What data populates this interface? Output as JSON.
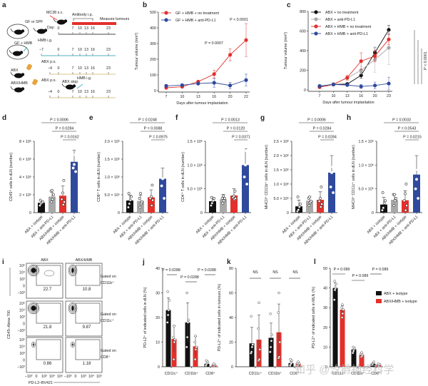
{
  "panel_letters": [
    "a",
    "b",
    "c",
    "d",
    "e",
    "f",
    "g",
    "h",
    "i",
    "j",
    "k",
    "l"
  ],
  "colors": {
    "black": "#111111",
    "gray": "#a8a8a8",
    "red": "#e3302b",
    "blue": "#2f4a9c",
    "teal": "#4fb3c2",
    "orange": "#e8a33a",
    "beige": "#d9c48a"
  },
  "schematic": {
    "mc38": "MC38 s.c.",
    "antibody": "Antibody i.p.",
    "measure": "Measure tumours",
    "gf_spf": "GF or SPF",
    "day": "Day:",
    "gf_hmb": "GF + HMB",
    "hmb_ig": "HMB i.g.",
    "abx": "ABX",
    "abx_po": "ABX p.o.",
    "abx_hmb": "ABX/HMB",
    "abx_po_2": "ABX p.o.",
    "abx_stop": "ABX stop",
    "hmb_ig_2": "HMB i.g.",
    "row1_days": [
      "0",
      "7",
      "10",
      "13",
      "16",
      "23"
    ],
    "row2_days": [
      "−7",
      "0",
      "7",
      "10",
      "13",
      "16",
      "23"
    ],
    "row3_days": [
      "−4",
      "0",
      "7",
      "10",
      "13",
      "16",
      "23"
    ],
    "row4_days": [
      "−4",
      "0",
      "7",
      "10",
      "13",
      "16",
      "23"
    ]
  },
  "chart_data": [
    {
      "panel": "b",
      "type": "line",
      "x": [
        7,
        10,
        13,
        16,
        20,
        22
      ],
      "xlabel": "Days after tumour implantation",
      "ylabel": "Tumour volume (mm³)",
      "ylim": [
        0,
        500
      ],
      "yticks": [
        0,
        100,
        200,
        300,
        400,
        500
      ],
      "series": [
        {
          "name": "GF + HMB + no treatment",
          "color": "#e3302b",
          "values": [
            18,
            25,
            57,
            105,
            228,
            322
          ],
          "err": [
            8,
            8,
            8,
            25,
            38,
            105
          ]
        },
        {
          "name": "GF + HMB + anti-PD-L1",
          "color": "#2f4a9c",
          "values": [
            30,
            35,
            45,
            50,
            33,
            67
          ],
          "err": [
            8,
            5,
            8,
            28,
            20,
            38
          ]
        }
      ],
      "annotations": [
        "P = 0.0007",
        "P < 0.0001"
      ]
    },
    {
      "panel": "c",
      "type": "line",
      "x": [
        7,
        10,
        13,
        16,
        20,
        23
      ],
      "xlabel": "Days after tumour implantation",
      "ylabel": "Tumour volume (mm³)",
      "ylim": [
        0,
        800
      ],
      "yticks": [
        0,
        200,
        400,
        600,
        800
      ],
      "series": [
        {
          "name": "ABX + no treatment",
          "color": "#111111",
          "values": [
            30,
            55,
            60,
            148,
            380,
            612
          ],
          "err": [
            10,
            10,
            10,
            30,
            50,
            45
          ]
        },
        {
          "name": "ABX + anti-PD-L1",
          "color": "#a8a8a8",
          "values": [
            35,
            60,
            120,
            200,
            310,
            430
          ],
          "err": [
            10,
            10,
            20,
            40,
            130,
            170
          ]
        },
        {
          "name": "ABX + HMB + no treatment",
          "color": "#e3302b",
          "values": [
            28,
            55,
            125,
            293,
            345,
            515
          ],
          "err": [
            8,
            10,
            25,
            85,
            60,
            55
          ]
        },
        {
          "name": "ABX + HMB + anti-PD-L1",
          "color": "#2f4a9c",
          "values": [
            40,
            55,
            50,
            35,
            45,
            65
          ],
          "err": [
            10,
            10,
            10,
            20,
            35,
            65
          ]
        }
      ],
      "annotations": [
        "P < 0.0001"
      ]
    },
    {
      "panel": "d",
      "type": "bar",
      "categories": [
        "ABX + isotype",
        "ABX + anti-PD-L1",
        "ABX/HMB + isotype",
        "ABX/HMB + anti-PD-L1"
      ],
      "colors": [
        "#111111",
        "#a8a8a8",
        "#e3302b",
        "#2f4a9c"
      ],
      "ylabel": "CD45⁺ cells in dLN (number)",
      "ylim": [
        0,
        8000000.0
      ],
      "yticks": [
        0,
        2000000.0,
        4000000.0,
        6000000.0,
        8000000.0
      ],
      "ytick_labels": [
        "0",
        "2 × 10⁶",
        "4 × 10⁶",
        "6 × 10⁶",
        "8 × 10⁶"
      ],
      "values": [
        1100000.0,
        1800000.0,
        1900000.0,
        5700000.0
      ],
      "sd": [
        200000.0,
        500000.0,
        1100000.0,
        1300000.0
      ],
      "points": [
        [
          800000.0,
          1000000.0,
          1100000.0,
          1200000.0,
          1400000.0
        ],
        [
          1200000.0,
          1500000.0,
          2000000.0,
          2400000.0,
          2500000.0
        ],
        [
          900000.0,
          1200000.0,
          1500000.0,
          2200000.0,
          3600000.0
        ],
        [
          4600000.0,
          5000000.0,
          5400000.0,
          6500000.0,
          7500000.0
        ]
      ],
      "comparisons": [
        {
          "groups": [
            0,
            3
          ],
          "label": "P = 0.0006"
        },
        {
          "groups": [
            1,
            3
          ],
          "label": "P = 0.0284"
        },
        {
          "groups": [
            2,
            3
          ],
          "label": "P = 0.0162"
        }
      ]
    },
    {
      "panel": "e",
      "type": "bar",
      "categories": [
        "ABX + isotype",
        "ABX + anti-PD-L1",
        "ABX/HMB + isotype",
        "ABX/HMB + anti-PD-L1"
      ],
      "colors": [
        "#111111",
        "#a8a8a8",
        "#e3302b",
        "#2f4a9c"
      ],
      "ylabel": "CD8⁺ T cells in dLN (number)",
      "ylim": [
        0,
        2000000.0
      ],
      "yticks": [
        0,
        500000.0,
        1000000.0,
        1500000.0,
        2000000.0
      ],
      "ytick_labels": [
        "0",
        "5.0 × 10⁵",
        "1.0 × 10⁶",
        "1.5 × 10⁶",
        "2.0 × 10⁶"
      ],
      "values": [
        340000.0,
        330000.0,
        430000.0,
        950000.0
      ],
      "sd": [
        150000.0,
        160000.0,
        210000.0,
        300000.0
      ],
      "points": [
        [
          150000.0,
          250000.0,
          350000.0,
          450000.0,
          540000.0
        ],
        [
          150000.0,
          250000.0,
          300000.0,
          400000.0,
          540000.0
        ],
        [
          200000.0,
          350000.0,
          400000.0,
          450000.0,
          770000.0
        ],
        [
          400000.0,
          750000.0,
          950000.0,
          1300000.0,
          1550000.0
        ]
      ],
      "comparisons": [
        {
          "groups": [
            0,
            3
          ],
          "label": "P = 0.0248"
        },
        {
          "groups": [
            1,
            3
          ],
          "label": "P = 0.0088"
        },
        {
          "groups": [
            2,
            3
          ],
          "label": "P = 0.0975"
        }
      ]
    },
    {
      "panel": "f",
      "type": "bar",
      "categories": [
        "ABX + isotype",
        "ABX + anti-PD-L1",
        "ABX/HMB + isotype",
        "ABX/HMB + anti-PD-L1"
      ],
      "colors": [
        "#111111",
        "#a8a8a8",
        "#e3302b",
        "#2f4a9c"
      ],
      "ylabel": "CD4⁺ T cells in dLN (number)",
      "ylim": [
        0,
        1500000.0
      ],
      "yticks": [
        0,
        500000.0,
        1000000.0,
        1500000.0
      ],
      "ytick_labels": [
        "0",
        "5.0 × 10⁵",
        "1.0 × 10⁶",
        "1.5 × 10⁶"
      ],
      "values": [
        240000.0,
        280000.0,
        360000.0,
        1000000.0
      ],
      "sd": [
        80000.0,
        100000.0,
        140000.0,
        340000.0
      ],
      "points": [
        [
          150000.0,
          200000.0,
          250000.0,
          300000.0,
          320000.0
        ],
        [
          200000.0,
          250000.0,
          300000.0,
          300000.0,
          350000.0
        ],
        [
          280000.0,
          300000.0,
          320000.0,
          350000.0,
          450000.0
        ],
        [
          600000.0,
          750000.0,
          1000000.0,
          1300000.0,
          1350000.0
        ]
      ],
      "comparisons": [
        {
          "groups": [
            0,
            3
          ],
          "label": "P = 0.0013"
        },
        {
          "groups": [
            1,
            3
          ],
          "label": "P = 0.0120"
        },
        {
          "groups": [
            2,
            3
          ],
          "label": "P = 0.0371"
        }
      ]
    },
    {
      "panel": "g",
      "type": "bar",
      "categories": [
        "ABX + isotype",
        "ABX + anti-PD-L1",
        "ABX/HMB + isotype",
        "ABX/HMB + anti-PD-L1"
      ],
      "colors": [
        "#111111",
        "#a8a8a8",
        "#e3302b",
        "#2f4a9c"
      ],
      "ylabel": "MHCII⁺ CD11b⁺ cells in dLN (number)",
      "ylim": [
        0,
        2500000.0
      ],
      "yticks": [
        0,
        500000.0,
        1000000.0,
        1500000.0,
        2000000.0,
        2500000.0
      ],
      "ytick_labels": [
        "0",
        "5.0 × 10⁵",
        "1.0 × 10⁶",
        "1.5 × 10⁶",
        "2.0 × 10⁶",
        "2.5 × 10⁶"
      ],
      "values": [
        220000.0,
        420000.0,
        450000.0,
        1400000.0
      ],
      "sd": [
        220000.0,
        130000.0,
        280000.0,
        600000.0
      ],
      "points": [
        [
          50000.0,
          100000.0,
          200000.0,
          300000.0,
          550000.0
        ],
        [
          250000.0,
          350000.0,
          400000.0,
          500000.0,
          550000.0
        ],
        [
          200000.0,
          300000.0,
          400000.0,
          500000.0,
          900000.0
        ],
        [
          700000.0,
          900000.0,
          1400000.0,
          1600000.0,
          2300000.0
        ]
      ],
      "comparisons": [
        {
          "groups": [
            0,
            3
          ],
          "label": "P = 0.0006"
        },
        {
          "groups": [
            1,
            3
          ],
          "label": "P = 0.0284"
        },
        {
          "groups": [
            2,
            3
          ],
          "label": "P = 0.0284"
        }
      ]
    },
    {
      "panel": "h",
      "type": "bar",
      "categories": [
        "ABX + isotype",
        "ABX + anti-PD-L1",
        "ABX/HMB + isotype",
        "ABX/HMB + anti-PD-L1"
      ],
      "colors": [
        "#111111",
        "#a8a8a8",
        "#e3302b",
        "#2f4a9c"
      ],
      "ylabel": "MHCII⁺ CD11c⁺ cells in dLN (number)",
      "ylim": [
        0,
        1500000.0
      ],
      "yticks": [
        0,
        500000.0,
        1000000.0,
        1500000.0
      ],
      "ytick_labels": [
        "0",
        "5.0 × 10⁵",
        "1.0 × 10⁶",
        "1.5 × 10⁶"
      ],
      "values": [
        170000.0,
        270000.0,
        260000.0,
        800000.0
      ],
      "sd": [
        150000.0,
        110000.0,
        200000.0,
        400000.0
      ],
      "points": [
        [
          50000.0,
          100000.0,
          200000.0,
          250000.0,
          420000.0
        ],
        [
          150000.0,
          250000.0,
          300000.0,
          380000.0,
          380000.0
        ],
        [
          50000.0,
          150000.0,
          250000.0,
          400000.0,
          600000.0
        ],
        [
          300000.0,
          500000.0,
          700000.0,
          900000.0,
          1400000.0
        ]
      ],
      "comparisons": [
        {
          "groups": [
            0,
            3
          ],
          "label": "P = 0.0033"
        },
        {
          "groups": [
            1,
            3
          ],
          "label": "P = 0.0543"
        },
        {
          "groups": [
            2,
            3
          ],
          "label": "P = 0.0215"
        }
      ]
    },
    {
      "panel": "j",
      "type": "bar",
      "categories": [
        "CD11c⁺",
        "CD11b⁺",
        "CD8⁺"
      ],
      "ylabel": "PD-L2⁺ of indicated cells in dLN (%)",
      "ylim": [
        0,
        40
      ],
      "yticks": [
        0,
        10,
        20,
        30,
        40
      ],
      "series": [
        {
          "name": "ABX + isotype",
          "color": "#111111",
          "values": [
            23,
            18,
            1.2
          ],
          "sd": [
            5,
            8,
            1
          ],
          "points": [
            [
              18,
              21,
              23,
              27,
              30.5
            ],
            [
              8,
              12,
              18,
              19,
              30
            ],
            [
              0.5,
              1,
              1.5,
              2,
              2.5
            ]
          ]
        },
        {
          "name": "ABX/HMB + isotype",
          "color": "#e3302b",
          "values": [
            11.3,
            8.3,
            0.7
          ],
          "sd": [
            5.5,
            4,
            0.4
          ],
          "points": [
            [
              3,
              10,
              11,
              12,
              16.5
            ],
            [
              3,
              7,
              8,
              10,
              12.5
            ],
            [
              0.3,
              0.5,
              0.7,
              0.9,
              1.2
            ]
          ]
        }
      ],
      "comparisons": [
        "P = 0.0288",
        "P = 0.0288",
        "P = 0.0288"
      ]
    },
    {
      "panel": "k",
      "type": "bar",
      "categories": [
        "CD11c⁺",
        "CD11b⁺",
        "CD8⁺"
      ],
      "ylabel": "PD-L2⁺ of indicated cells in tumours (%)",
      "ylim": [
        0,
        80
      ],
      "yticks": [
        0,
        20,
        40,
        60,
        80
      ],
      "series": [
        {
          "name": "ABX + isotype",
          "color": "#111111",
          "values": [
            19,
            23.5,
            3
          ],
          "sd": [
            13,
            12,
            1.5
          ],
          "points": [
            [
              11,
              12,
              16,
              18,
              41
            ],
            [
              12,
              16,
              21,
              26,
              43
            ],
            [
              1,
              2,
              3,
              5,
              6
            ]
          ]
        },
        {
          "name": "ABX/HMB + isotype",
          "color": "#e3302b",
          "values": [
            22,
            28,
            2.5
          ],
          "sd": [
            20,
            23,
            1
          ],
          "points": [
            [
              5,
              6,
              14,
              31,
              52
            ],
            [
              7,
              8,
              20,
              44,
              60
            ],
            [
              1,
              2,
              2.5,
              3,
              4
            ]
          ]
        }
      ],
      "comparisons": [
        "NS",
        "NS",
        "NS"
      ]
    },
    {
      "panel": "l",
      "type": "bar",
      "categories": [
        "CD11c⁺",
        "CD11b⁺",
        "CD8⁺"
      ],
      "ylabel": "PD-L2⁺ of indicated cells in MLN (%)",
      "ylim": [
        0,
        50
      ],
      "yticks": [
        0,
        10,
        20,
        30,
        40,
        50
      ],
      "legend": "right",
      "series": [
        {
          "name": "ABX + isotype",
          "color": "#111111",
          "values": [
            40,
            8.8,
            1.5
          ],
          "sd": [
            2.5,
            1,
            0.5
          ],
          "points": [
            [
              34,
              39,
              40,
              42,
              43.5
            ],
            [
              7,
              8,
              9,
              9.5,
              10
            ],
            [
              1,
              1.5,
              2,
              2.5
            ]
          ]
        },
        {
          "name": "ABX/HMB + isotype",
          "color": "#e3302b",
          "values": [
            29,
            6,
            1
          ],
          "sd": [
            2,
            1.2,
            0.3
          ],
          "points": [
            [
              25,
              27,
              29,
              30,
              31.5
            ],
            [
              5,
              5.5,
              6,
              6.5,
              7.2
            ],
            [
              0.5,
              1,
              1.2,
              1.5
            ]
          ]
        }
      ],
      "comparisons": [
        "P = 0.089",
        "P = 0.089",
        "P = 0.089"
      ]
    }
  ],
  "flow": {
    "columns": [
      "ABX",
      "ABX/HMB"
    ],
    "rows": [
      {
        "label_1": "Gated on",
        "label_2": "CD11b⁺",
        "values": [
          "22.7",
          "10.8"
        ]
      },
      {
        "label_1": "Gated on",
        "label_2": "CD11c⁺",
        "values": [
          "21.8",
          "9.87"
        ]
      },
      {
        "label_1": "Gated on",
        "label_2": "CD8⁺",
        "values": [
          "0.86",
          "1.18"
        ]
      }
    ],
    "yticks": [
      "10⁵",
      "10⁴",
      "10³",
      "0",
      "−10³"
    ],
    "xticks": [
      "−10³",
      "0",
      "10³",
      "10⁴",
      "10⁵"
    ],
    "ylabel": "CD45–Alexa 700",
    "xlabel": "PD-L2–BV421"
  },
  "watermark": "知乎 @汐爵神经科学"
}
